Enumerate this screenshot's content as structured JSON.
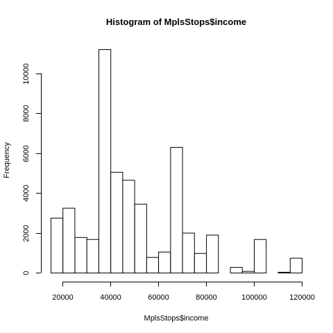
{
  "chart_data": {
    "type": "bar",
    "title": "Histogram of MplsStops$income",
    "xlabel": "MplsStops$income",
    "ylabel": "Frequency",
    "bin_width": 5000,
    "bins": [
      {
        "start": 15000,
        "end": 20000,
        "count": 2750
      },
      {
        "start": 20000,
        "end": 25000,
        "count": 3250
      },
      {
        "start": 25000,
        "end": 30000,
        "count": 1780
      },
      {
        "start": 30000,
        "end": 35000,
        "count": 1680
      },
      {
        "start": 35000,
        "end": 40000,
        "count": 11200
      },
      {
        "start": 40000,
        "end": 45000,
        "count": 5050
      },
      {
        "start": 45000,
        "end": 50000,
        "count": 4650
      },
      {
        "start": 50000,
        "end": 55000,
        "count": 3450
      },
      {
        "start": 55000,
        "end": 60000,
        "count": 780
      },
      {
        "start": 60000,
        "end": 65000,
        "count": 1050
      },
      {
        "start": 65000,
        "end": 70000,
        "count": 6300
      },
      {
        "start": 70000,
        "end": 75000,
        "count": 2000
      },
      {
        "start": 75000,
        "end": 80000,
        "count": 980
      },
      {
        "start": 80000,
        "end": 85000,
        "count": 1900
      },
      {
        "start": 85000,
        "end": 90000,
        "count": 0
      },
      {
        "start": 90000,
        "end": 95000,
        "count": 280
      },
      {
        "start": 95000,
        "end": 100000,
        "count": 80
      },
      {
        "start": 100000,
        "end": 105000,
        "count": 1680
      },
      {
        "start": 105000,
        "end": 110000,
        "count": 0
      },
      {
        "start": 110000,
        "end": 115000,
        "count": 40
      },
      {
        "start": 115000,
        "end": 120000,
        "count": 740
      }
    ],
    "xticks": [
      20000,
      40000,
      60000,
      80000,
      100000,
      120000
    ],
    "yticks": [
      0,
      2000,
      4000,
      6000,
      8000,
      10000
    ],
    "xlim": [
      15000,
      120000
    ],
    "ylim": [
      0,
      11200
    ],
    "grid": false,
    "legend": "none"
  }
}
